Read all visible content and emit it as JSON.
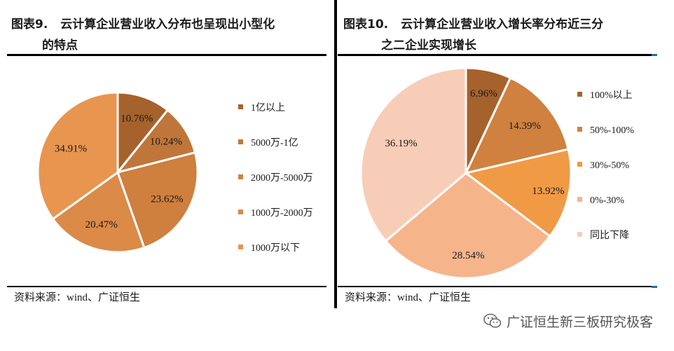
{
  "left": {
    "title_num": "图表9.",
    "title_line1": "云计算企业营业收入分布也呈现出小型化",
    "title_line2": "的特点",
    "source": "资料来源：wind、广证恒生"
  },
  "right": {
    "title_num": "图表10.",
    "title_line1": "云计算企业营业收入增长率分布近三分",
    "title_line2": "之二企业实现增长",
    "source": "资料来源：wind、广证恒生"
  },
  "watermark": {
    "text": "广证恒生新三板研究极客",
    "icon": "wechat-icon"
  },
  "chart_data": [
    {
      "type": "pie",
      "categories": [
        "1亿以上",
        "5000万-1亿",
        "2000万-5000万",
        "1000万-2000万",
        "1000万以下"
      ],
      "values": [
        10.76,
        10.24,
        23.62,
        20.47,
        34.91
      ],
      "labels": [
        "10.76%",
        "10.24%",
        "23.62%",
        "20.47%",
        "34.91%"
      ],
      "colors": [
        "#a5622c",
        "#c0763a",
        "#cf7f3e",
        "#db8a47",
        "#e8954f"
      ],
      "legend_position": "right"
    },
    {
      "type": "pie",
      "categories": [
        "100%以上",
        "50%-100%",
        "30%-50%",
        "0%-30%",
        "同比下降"
      ],
      "values": [
        6.96,
        14.39,
        13.92,
        28.54,
        36.19
      ],
      "labels": [
        "6.96%",
        "14.39%",
        "13.92%",
        "28.54%",
        "36.19%"
      ],
      "colors": [
        "#a5622c",
        "#d0813f",
        "#f19a45",
        "#f6b48b",
        "#f8cdb7"
      ],
      "legend_position": "right"
    }
  ]
}
